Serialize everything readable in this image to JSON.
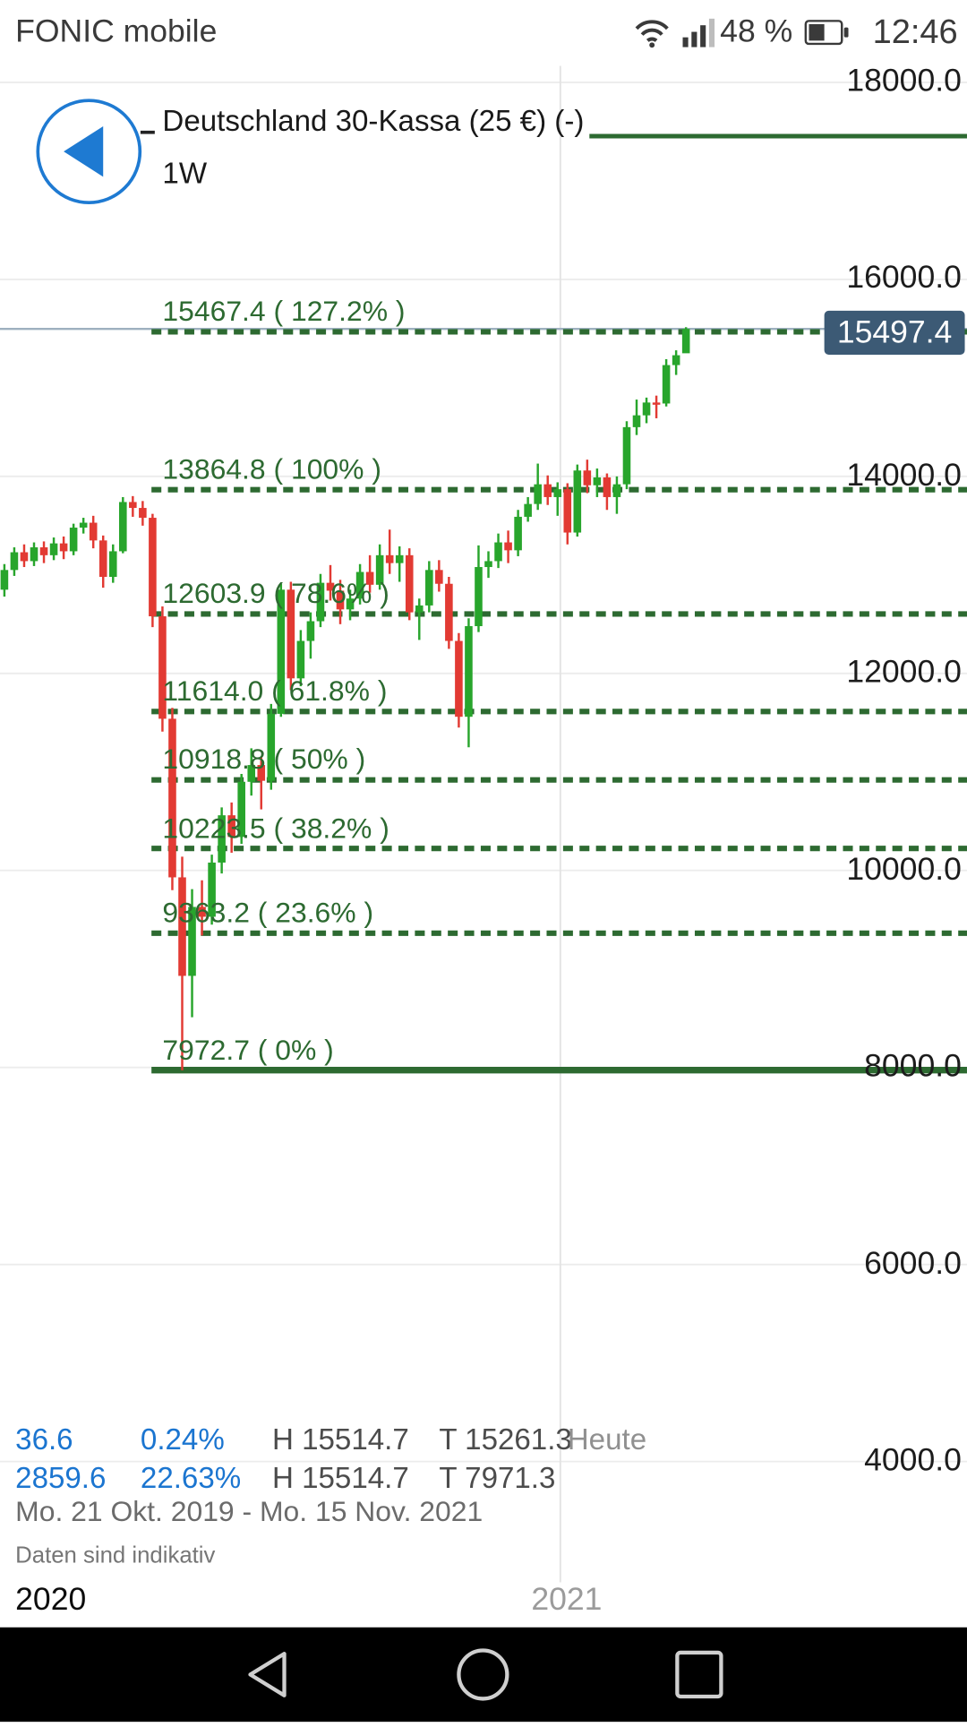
{
  "status_bar": {
    "carrier": "FONIC mobile",
    "battery_percent": "48 %",
    "time": "12:46"
  },
  "header": {
    "instrument": "Deutschland 30-Kassa (25 €) (-)",
    "timeframe": "1W"
  },
  "price_badge": "15497.4",
  "chart_data": {
    "type": "candlestick",
    "title": "Deutschland 30-Kassa weekly candlestick chart with Fibonacci retracement",
    "y_axis": {
      "min": 4000,
      "max": 18000,
      "ticks": [
        "18000.0",
        "16000.0",
        "14000.0",
        "12000.0",
        "10000.0",
        "8000.0",
        "6000.0",
        "4000.0"
      ]
    },
    "x_axis": {
      "labels": [
        "2020",
        "2021"
      ]
    },
    "current_price": 15497.4,
    "fibonacci_levels": [
      {
        "label": "15467.4 ( 127.2% )",
        "price": 15467.4,
        "style": "dashed"
      },
      {
        "label": "13864.8 ( 100% )",
        "price": 13864.8,
        "style": "dashed"
      },
      {
        "label": "12603.9 ( 78.6% )",
        "price": 12603.9,
        "style": "dashed"
      },
      {
        "label": "11614.0 ( 61.8% )",
        "price": 11614.0,
        "style": "dashed"
      },
      {
        "label": "10918.8 ( 50% )",
        "price": 10918.8,
        "style": "dashed"
      },
      {
        "label": "10223.5 ( 38.2% )",
        "price": 10223.5,
        "style": "dashed"
      },
      {
        "label": "9363.2 ( 23.6% )",
        "price": 9363.2,
        "style": "dashed"
      },
      {
        "label": "7972.7 ( 0% )",
        "price": 7972.7,
        "style": "solid"
      }
    ],
    "candles_ohlc": [
      [
        12850,
        13110,
        12780,
        13050
      ],
      [
        13050,
        13280,
        12990,
        13230
      ],
      [
        13230,
        13310,
        13080,
        13140
      ],
      [
        13140,
        13330,
        13090,
        13280
      ],
      [
        13280,
        13340,
        13120,
        13200
      ],
      [
        13200,
        13380,
        13150,
        13320
      ],
      [
        13320,
        13390,
        13160,
        13240
      ],
      [
        13240,
        13520,
        13200,
        13480
      ],
      [
        13480,
        13580,
        13420,
        13530
      ],
      [
        13530,
        13600,
        13270,
        13350
      ],
      [
        13350,
        13400,
        12870,
        12980
      ],
      [
        12980,
        13310,
        12920,
        13240
      ],
      [
        13240,
        13790,
        13220,
        13740
      ],
      [
        13740,
        13800,
        13590,
        13680
      ],
      [
        13680,
        13750,
        13500,
        13580
      ],
      [
        13580,
        13620,
        12470,
        12580
      ],
      [
        12580,
        12680,
        11410,
        11540
      ],
      [
        11540,
        11650,
        9800,
        9930
      ],
      [
        9930,
        10140,
        7971,
        8930
      ],
      [
        8930,
        9810,
        8510,
        9630
      ],
      [
        9630,
        9900,
        9340,
        9530
      ],
      [
        9530,
        10160,
        9450,
        10080
      ],
      [
        10080,
        10640,
        9970,
        10560
      ],
      [
        10560,
        10690,
        10180,
        10340
      ],
      [
        10340,
        10980,
        10270,
        10900
      ],
      [
        10900,
        11240,
        10760,
        11070
      ],
      [
        11070,
        11150,
        10620,
        10910
      ],
      [
        10910,
        11690,
        10820,
        11590
      ],
      [
        11590,
        12910,
        11560,
        12850
      ],
      [
        12850,
        12930,
        11830,
        11950
      ],
      [
        11950,
        12440,
        11870,
        12330
      ],
      [
        12330,
        12620,
        12150,
        12530
      ],
      [
        12530,
        13010,
        12470,
        12920
      ],
      [
        12920,
        13100,
        12740,
        12840
      ],
      [
        12840,
        12950,
        12500,
        12650
      ],
      [
        12650,
        12850,
        12540,
        12760
      ],
      [
        12760,
        13110,
        12700,
        13030
      ],
      [
        13030,
        13200,
        12820,
        12900
      ],
      [
        12900,
        13310,
        12850,
        13200
      ],
      [
        13200,
        13460,
        13010,
        13120
      ],
      [
        13120,
        13290,
        12930,
        13200
      ],
      [
        13200,
        13270,
        12540,
        12620
      ],
      [
        12620,
        12760,
        12340,
        12690
      ],
      [
        12690,
        13140,
        12620,
        13050
      ],
      [
        13050,
        13150,
        12830,
        12910
      ],
      [
        12910,
        12980,
        12250,
        12330
      ],
      [
        12330,
        12410,
        11450,
        11560
      ],
      [
        11560,
        12560,
        11250,
        12480
      ],
      [
        12480,
        13300,
        12420,
        13080
      ],
      [
        13080,
        13240,
        12970,
        13140
      ],
      [
        13140,
        13420,
        13070,
        13330
      ],
      [
        13330,
        13450,
        13120,
        13250
      ],
      [
        13250,
        13660,
        13190,
        13590
      ],
      [
        13590,
        13790,
        13540,
        13720
      ],
      [
        13720,
        14130,
        13660,
        13920
      ],
      [
        13920,
        14010,
        13710,
        13790
      ],
      [
        13790,
        13940,
        13600,
        13870
      ],
      [
        13870,
        13930,
        13310,
        13430
      ],
      [
        13430,
        14120,
        13390,
        14060
      ],
      [
        14060,
        14170,
        13830,
        13910
      ],
      [
        13910,
        14080,
        13790,
        13990
      ],
      [
        13990,
        14030,
        13660,
        13790
      ],
      [
        13790,
        14000,
        13620,
        13920
      ],
      [
        13920,
        14560,
        13870,
        14500
      ],
      [
        14500,
        14780,
        14420,
        14620
      ],
      [
        14620,
        14800,
        14540,
        14750
      ],
      [
        14750,
        14820,
        14590,
        14740
      ],
      [
        14740,
        15190,
        14710,
        15130
      ],
      [
        15130,
        15280,
        15030,
        15230
      ],
      [
        15250,
        15514.7,
        15261.3,
        15497.4
      ]
    ]
  },
  "info_panel": {
    "row1": {
      "change": "36.6",
      "change_pct": "0.24%",
      "high": "H 15514.7",
      "low": "T 15261.3",
      "period": "Heute"
    },
    "row2": {
      "change": "2859.6",
      "change_pct": "22.63%",
      "high": "H 15514.7",
      "low": "T 7971.3"
    },
    "date_range": "Mo. 21 Okt. 2019 - Mo. 15 Nov. 2021",
    "disclaimer": "Daten sind indikativ"
  },
  "colors": {
    "up": "#28a52c",
    "down": "#e23a33",
    "fib": "#2d6a31",
    "badge_bg": "#3c5a75",
    "accent_blue": "#1b75d0",
    "price_line": "#9eb0bf",
    "grid": "#ececec"
  }
}
